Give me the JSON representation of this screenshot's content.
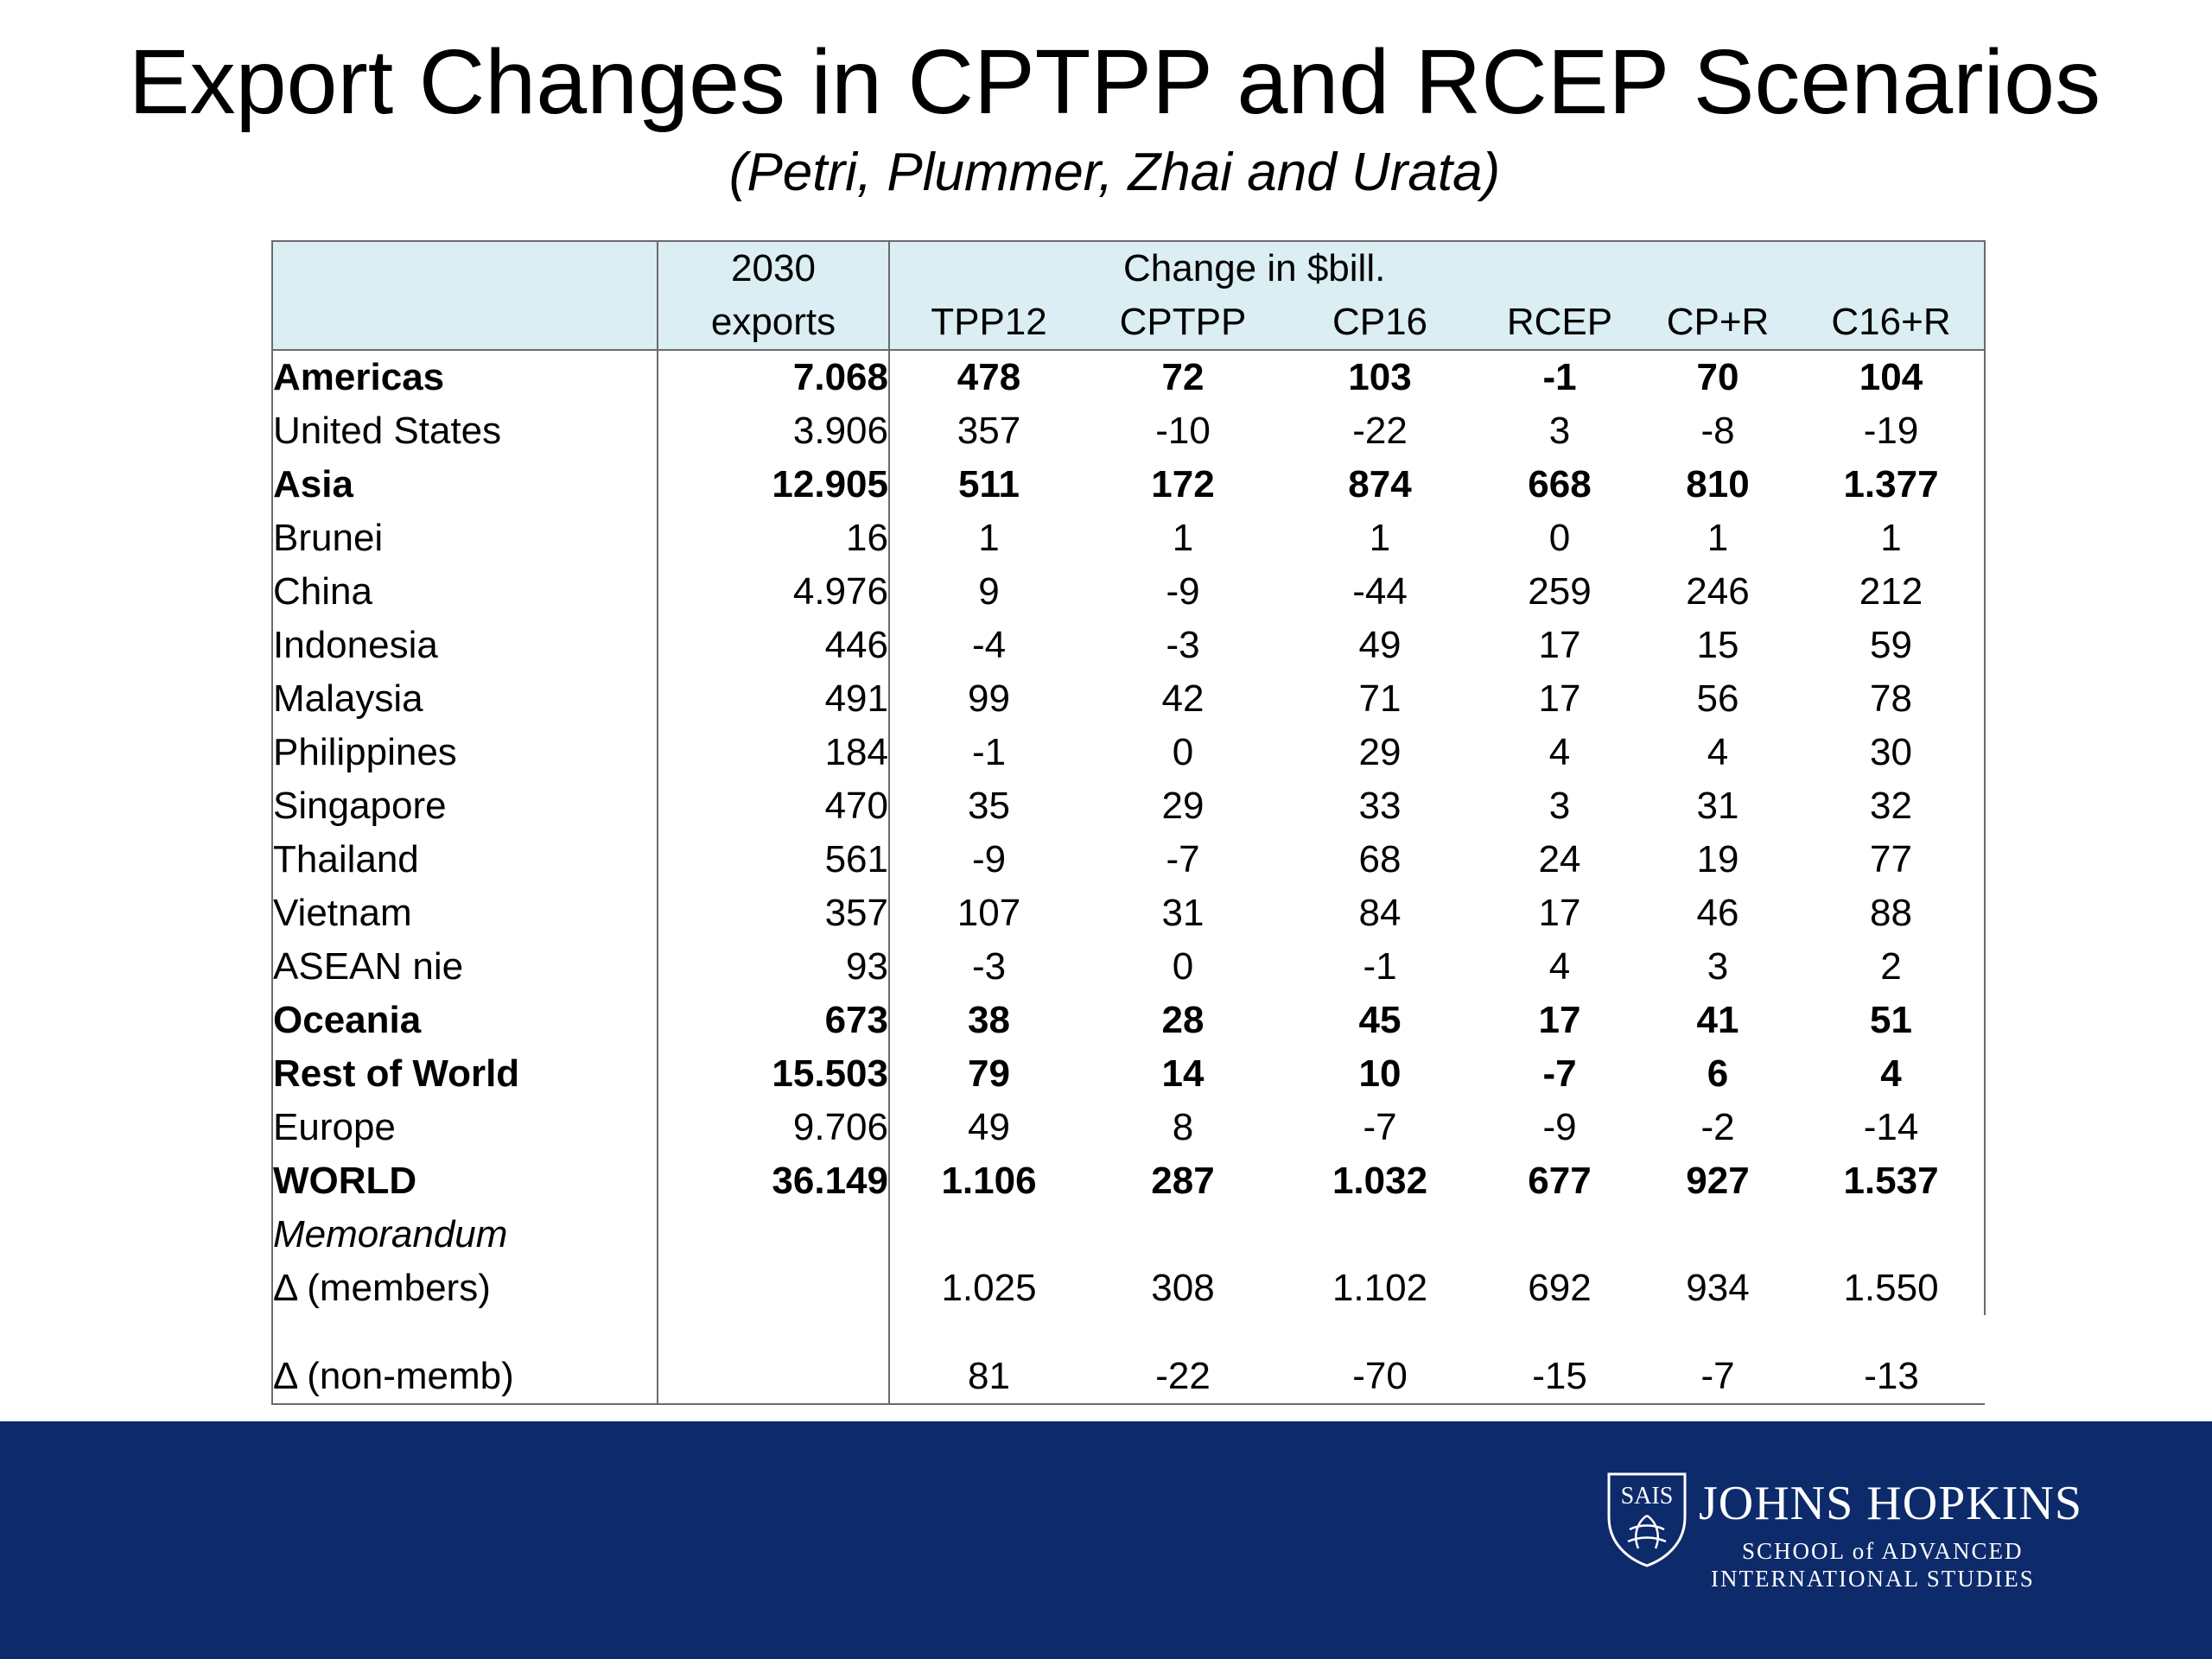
{
  "title": "Export Changes in CPTPP and RCEP Scenarios",
  "subtitle": "(Petri, Plummer, Zhai and Urata)",
  "table": {
    "header": {
      "exports_line1": "2030",
      "exports_line2": "exports",
      "change_label": "Change in $bill.",
      "columns": [
        "TPP12",
        "CPTPP",
        "CP16",
        "RCEP",
        "CP+R",
        "C16+R"
      ]
    },
    "rows": [
      {
        "label": "Americas",
        "bold": true,
        "indent": false,
        "exports": "7.068",
        "values": [
          "478",
          "72",
          "103",
          "-1",
          "70",
          "104"
        ]
      },
      {
        "label": "United States",
        "bold": false,
        "indent": true,
        "exports": "3.906",
        "values": [
          "357",
          "-10",
          "-22",
          "3",
          "-8",
          "-19"
        ]
      },
      {
        "label": "Asia",
        "bold": true,
        "indent": false,
        "exports": "12.905",
        "values": [
          "511",
          "172",
          "874",
          "668",
          "810",
          "1.377"
        ]
      },
      {
        "label": "Brunei",
        "bold": false,
        "indent": true,
        "exports": "16",
        "values": [
          "1",
          "1",
          "1",
          "0",
          "1",
          "1"
        ]
      },
      {
        "label": "China",
        "bold": false,
        "indent": true,
        "exports": "4.976",
        "values": [
          "9",
          "-9",
          "-44",
          "259",
          "246",
          "212"
        ]
      },
      {
        "label": "Indonesia",
        "bold": false,
        "indent": true,
        "exports": "446",
        "values": [
          "-4",
          "-3",
          "49",
          "17",
          "15",
          "59"
        ]
      },
      {
        "label": "Malaysia",
        "bold": false,
        "indent": true,
        "exports": "491",
        "values": [
          "99",
          "42",
          "71",
          "17",
          "56",
          "78"
        ]
      },
      {
        "label": "Philippines",
        "bold": false,
        "indent": true,
        "exports": "184",
        "values": [
          "-1",
          "0",
          "29",
          "4",
          "4",
          "30"
        ]
      },
      {
        "label": "Singapore",
        "bold": false,
        "indent": true,
        "exports": "470",
        "values": [
          "35",
          "29",
          "33",
          "3",
          "31",
          "32"
        ]
      },
      {
        "label": "Thailand",
        "bold": false,
        "indent": true,
        "exports": "561",
        "values": [
          "-9",
          "-7",
          "68",
          "24",
          "19",
          "77"
        ]
      },
      {
        "label": "Vietnam",
        "bold": false,
        "indent": true,
        "exports": "357",
        "values": [
          "107",
          "31",
          "84",
          "17",
          "46",
          "88"
        ]
      },
      {
        "label": "ASEAN nie",
        "bold": false,
        "indent": true,
        "exports": "93",
        "values": [
          "-3",
          "0",
          "-1",
          "4",
          "3",
          "2"
        ]
      },
      {
        "label": "Oceania",
        "bold": true,
        "indent": false,
        "exports": "673",
        "values": [
          "38",
          "28",
          "45",
          "17",
          "41",
          "51"
        ]
      },
      {
        "label": "Rest of World",
        "bold": true,
        "indent": false,
        "exports": "15.503",
        "values": [
          "79",
          "14",
          "10",
          "-7",
          "6",
          "4"
        ]
      },
      {
        "label": "Europe",
        "bold": false,
        "indent": true,
        "exports": "9.706",
        "values": [
          "49",
          "8",
          "-7",
          "-9",
          "-2",
          "-14"
        ]
      },
      {
        "label": "WORLD",
        "bold": true,
        "indent": false,
        "exports": "36.149",
        "values": [
          "1.106",
          "287",
          "1.032",
          "677",
          "927",
          "1.537"
        ]
      }
    ],
    "memorandum": {
      "label": "Memorandum",
      "members": {
        "label": "Δ (members)",
        "values": [
          "1.025",
          "308",
          "1.102",
          "692",
          "934",
          "1.550"
        ]
      },
      "non_members": {
        "label": "Δ (non-memb)",
        "values": [
          "81",
          "-22",
          "-70",
          "-15",
          "-7",
          "-13"
        ]
      }
    }
  },
  "logo": {
    "shield_text": "SAIS",
    "name": "JOHNS HOPKINS",
    "sub_line1": "SCHOOL of ADVANCED",
    "sub_line2": "INTERNATIONAL STUDIES"
  },
  "colors": {
    "header_fill": "#daeef3",
    "footer_band": "#0d2a6b"
  }
}
